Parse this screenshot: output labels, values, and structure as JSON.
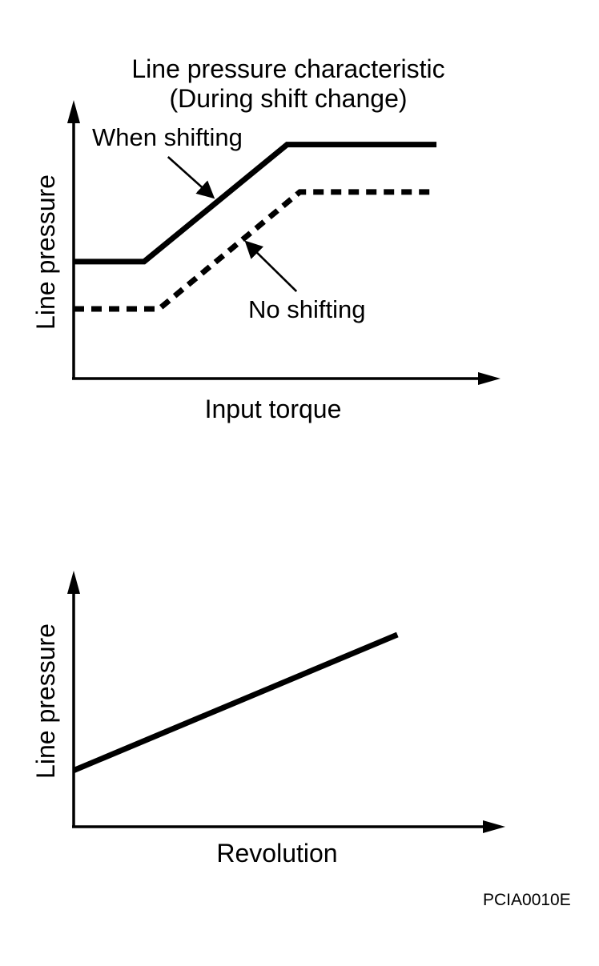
{
  "figure": {
    "code": "PCIA0010E",
    "ink_color": "#000000",
    "background_color": "#ffffff"
  },
  "chart_data": [
    {
      "type": "line",
      "title": "Line pressure characteristic",
      "subtitle": "(During shift change)",
      "xlabel": "Input torque",
      "ylabel": "Line pressure",
      "axes_style": "qualitative arrow axes, no ticks, no numeric scale",
      "legend_position": "inline annotations with pointer arrows",
      "series": [
        {
          "name": "When shifting",
          "line_style": "solid",
          "points": [
            [
              0,
              0.42
            ],
            [
              0.165,
              0.42
            ],
            [
              0.5,
              0.84
            ],
            [
              0.85,
              0.84
            ]
          ]
        },
        {
          "name": "No shifting",
          "line_style": "dashed",
          "points": [
            [
              0,
              0.25
            ],
            [
              0.2,
              0.25
            ],
            [
              0.53,
              0.67
            ],
            [
              0.85,
              0.67
            ]
          ]
        }
      ],
      "annotations": [
        {
          "text": "When shifting",
          "arrow_from": [
            0.221,
            0.796
          ],
          "arrow_to": [
            0.326,
            0.652
          ]
        },
        {
          "text": "No shifting",
          "arrow_from": [
            0.522,
            0.313
          ],
          "arrow_to": [
            0.405,
            0.489
          ]
        }
      ]
    },
    {
      "type": "line",
      "title": "",
      "subtitle": "",
      "xlabel": "Revolution",
      "ylabel": "Line pressure",
      "axes_style": "qualitative arrow axes, no ticks, no numeric scale",
      "legend_position": "none",
      "series": [
        {
          "name": "Line pressure",
          "line_style": "solid",
          "points": [
            [
              0,
              0.22
            ],
            [
              0.75,
              0.75
            ]
          ]
        }
      ],
      "annotations": []
    }
  ]
}
